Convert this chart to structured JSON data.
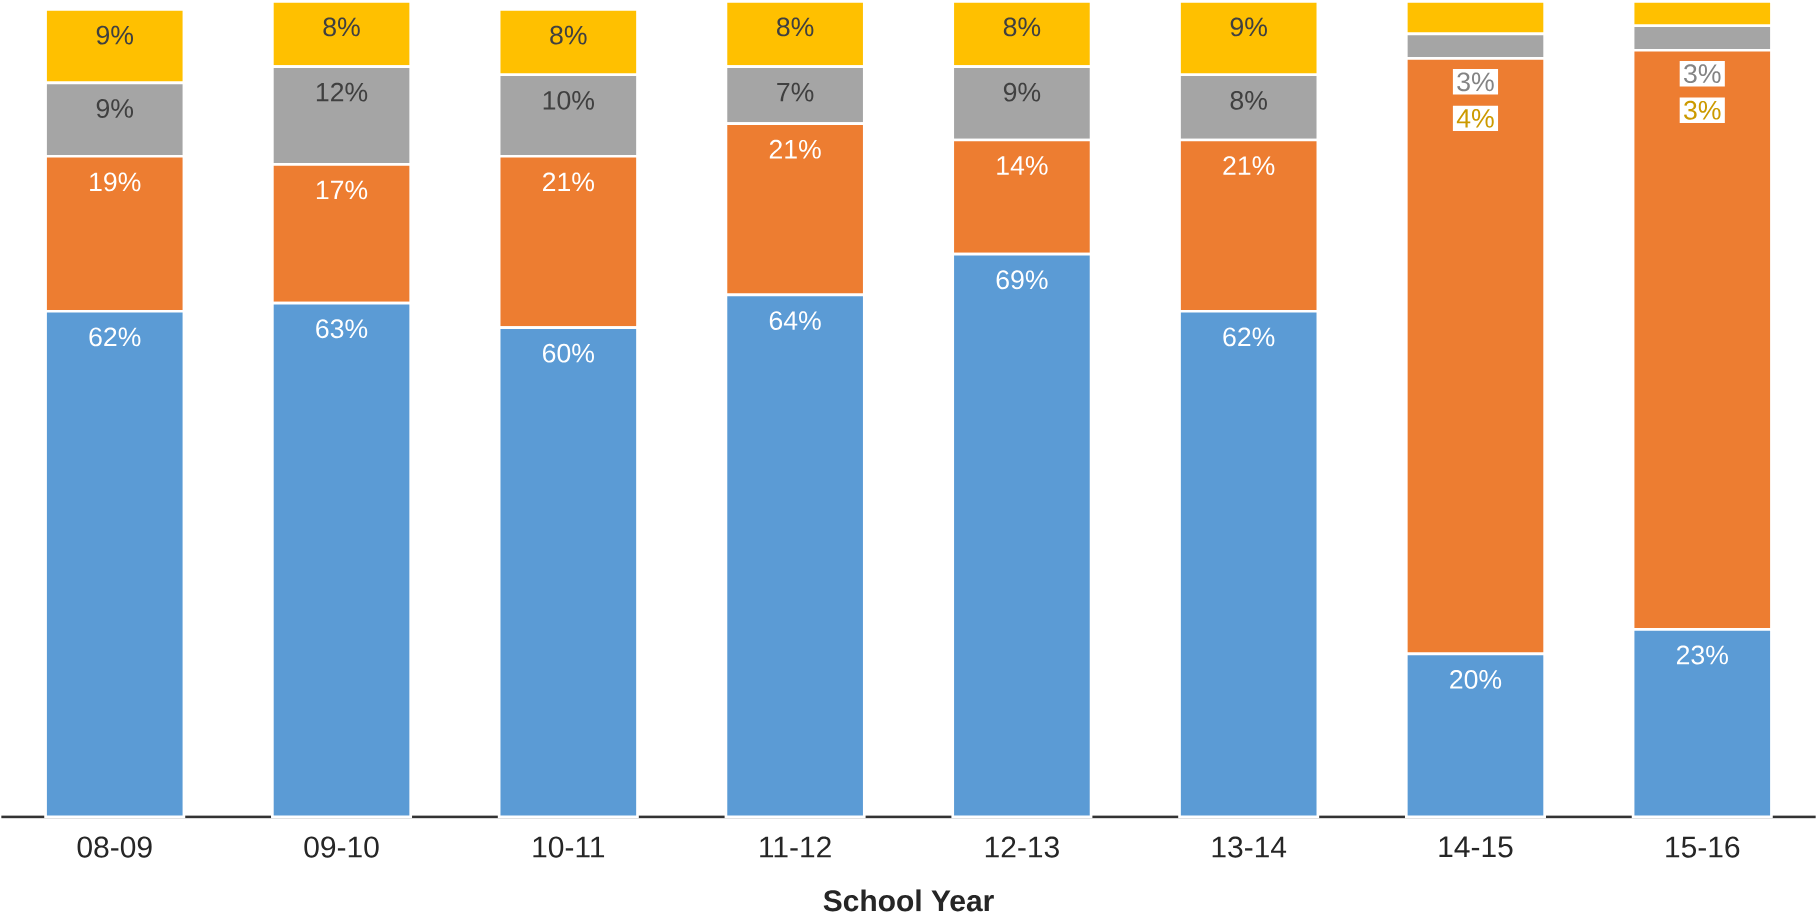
{
  "chart_data": {
    "type": "bar",
    "stacked": true,
    "xlabel": "School Year",
    "categories": [
      "08-09",
      "09-10",
      "10-11",
      "11-12",
      "12-13",
      "13-14",
      "14-15",
      "15-16"
    ],
    "series": [
      {
        "color": "#5b9bd5",
        "values": [
          62,
          63,
          60,
          64,
          69,
          62,
          20,
          23
        ],
        "value_labels": [
          "62%",
          "63%",
          "60%",
          "64%",
          "69%",
          "62%",
          "20%",
          "23%"
        ]
      },
      {
        "color": "#ed7d31",
        "values": [
          19,
          17,
          21,
          21,
          14,
          21,
          73,
          71
        ],
        "value_labels": [
          "19%",
          "17%",
          "21%",
          "21%",
          "14%",
          "21%",
          null,
          null
        ]
      },
      {
        "color": "#a5a5a5",
        "values": [
          9,
          12,
          10,
          7,
          9,
          8,
          3,
          3
        ],
        "value_labels": [
          "9%",
          "12%",
          "10%",
          "7%",
          "9%",
          "8%",
          "3%",
          "3%"
        ]
      },
      {
        "color": "#ffc000",
        "values": [
          9,
          8,
          8,
          8,
          8,
          9,
          4,
          3
        ],
        "value_labels": [
          "9%",
          "8%",
          "8%",
          "8%",
          "8%",
          "9%",
          "4%",
          "3%"
        ]
      }
    ]
  }
}
